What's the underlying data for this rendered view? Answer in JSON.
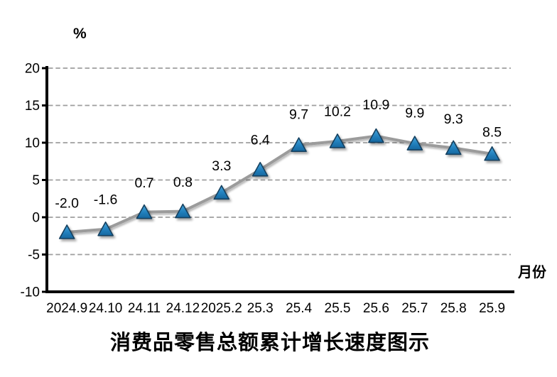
{
  "chart_data": {
    "type": "line",
    "title": "消费品零售总额累计增长速度图示",
    "ylabel": "%",
    "xlabel": "月份",
    "categories": [
      "2024.9",
      "24.10",
      "24.11",
      "24.12",
      "2025.2",
      "25.3",
      "25.4",
      "25.5",
      "25.6",
      "25.7",
      "25.8",
      "25.9"
    ],
    "values": [
      -2.0,
      -1.6,
      0.7,
      0.8,
      3.3,
      6.4,
      9.7,
      10.2,
      10.9,
      9.9,
      9.3,
      8.5
    ],
    "data_labels": [
      "-2.0",
      "-1.6",
      "0.7",
      "0.8",
      "3.3",
      "6.4",
      "9.7",
      "10.2",
      "10.9",
      "9.9",
      "9.3",
      "8.5"
    ],
    "yticks": [
      20,
      15,
      10,
      5,
      0,
      -5,
      -10
    ],
    "ylim": [
      -10,
      20
    ],
    "grid": "horizontal-dashed",
    "legend": "none",
    "colors": {
      "line": "#9b9b9b",
      "marker_top": "#47a6db",
      "marker_bottom": "#16679f",
      "marker_border": "#123f5e",
      "gridline": "#9e9e9e",
      "axis": "#000000",
      "text": "#000000",
      "background": "#ffffff"
    }
  }
}
